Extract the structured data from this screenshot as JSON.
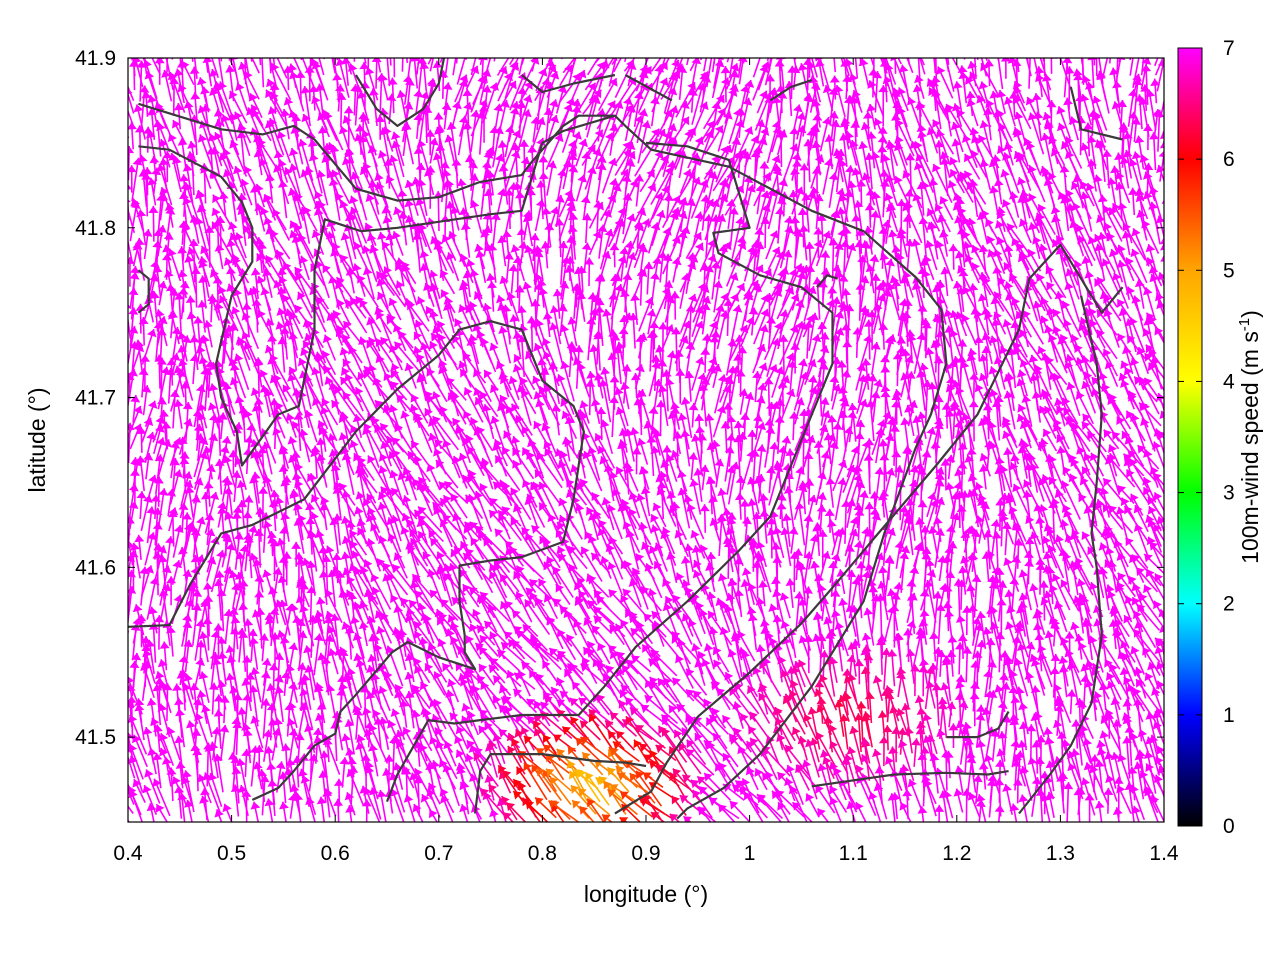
{
  "chart_data": {
    "type": "vector-field",
    "xlabel": "longitude (°)",
    "ylabel": "latitude (°)",
    "xlim": [
      0.4,
      1.4
    ],
    "ylim": [
      41.45,
      41.9
    ],
    "x_ticks": [
      "0.4",
      "0.5",
      "0.6",
      "0.7",
      "0.8",
      "0.9",
      "1",
      "1.1",
      "1.2",
      "1.3",
      "1.4"
    ],
    "y_ticks": [
      "41.5",
      "41.6",
      "41.7",
      "41.8",
      "41.9"
    ],
    "colorbar": {
      "label_main": "100m-wind speed (m s",
      "label_sup": "-1",
      "label_close": ")",
      "range": [
        0,
        7
      ],
      "ticks": [
        "0",
        "1",
        "2",
        "3",
        "4",
        "5",
        "6",
        "7"
      ],
      "palette": [
        "#000000",
        "#0000ff",
        "#00ffff",
        "#00ff00",
        "#ffff00",
        "#ffa500",
        "#ff0000",
        "#ff00ff"
      ]
    },
    "vectors": {
      "arrow_color": "magenta",
      "dominant_speed_ms": 7,
      "low_speed_zones": [
        {
          "lon": 0.86,
          "lat": 41.465,
          "speed_ms": 4.5
        },
        {
          "lon": 1.1,
          "lat": 41.5,
          "speed_ms": 6.2
        }
      ]
    },
    "contour_color": "#3a3a3a",
    "contours": [
      [
        [
          0.41,
          41.873
        ],
        [
          0.49,
          41.858
        ],
        [
          0.53,
          41.855
        ],
        [
          0.56,
          41.86
        ],
        [
          0.58,
          41.852
        ],
        [
          0.62,
          41.823
        ],
        [
          0.66,
          41.816
        ],
        [
          0.7,
          41.818
        ],
        [
          0.74,
          41.827
        ],
        [
          0.78,
          41.831
        ],
        [
          0.79,
          41.839
        ],
        [
          0.82,
          41.86
        ],
        [
          0.835,
          41.866
        ],
        [
          0.87,
          41.866
        ],
        [
          0.88,
          41.86
        ],
        [
          0.905,
          41.846
        ],
        [
          0.98,
          41.836
        ],
        [
          1.06,
          41.81
        ],
        [
          1.11,
          41.798
        ],
        [
          1.16,
          41.771
        ],
        [
          1.185,
          41.752
        ],
        [
          1.19,
          41.72
        ],
        [
          1.175,
          41.69
        ],
        [
          1.16,
          41.67
        ],
        [
          1.13,
          41.62
        ],
        [
          1.11,
          41.58
        ],
        [
          1.06,
          41.53
        ],
        [
          1.01,
          41.49
        ],
        [
          0.975,
          41.47
        ],
        [
          0.94,
          41.458
        ],
        [
          0.93,
          41.452
        ]
      ],
      [
        [
          0.41,
          41.848
        ],
        [
          0.44,
          41.846
        ],
        [
          0.49,
          41.83
        ],
        [
          0.51,
          41.815
        ],
        [
          0.52,
          41.8
        ],
        [
          0.52,
          41.78
        ],
        [
          0.5,
          41.76
        ],
        [
          0.485,
          41.72
        ],
        [
          0.49,
          41.7
        ],
        [
          0.505,
          41.68
        ],
        [
          0.51,
          41.66
        ],
        [
          0.545,
          41.69
        ],
        [
          0.565,
          41.695
        ],
        [
          0.58,
          41.74
        ],
        [
          0.58,
          41.775
        ],
        [
          0.59,
          41.805
        ],
        [
          0.625,
          41.798
        ],
        [
          0.66,
          41.8
        ],
        [
          0.75,
          41.808
        ],
        [
          0.78,
          41.81
        ],
        [
          0.8,
          41.85
        ],
        [
          0.82,
          41.857
        ],
        [
          0.87,
          41.866
        ]
      ],
      [
        [
          0.41,
          41.775
        ],
        [
          0.42,
          41.77
        ],
        [
          0.42,
          41.755
        ],
        [
          0.41,
          41.75
        ]
      ],
      [
        [
          0.62,
          41.89
        ],
        [
          0.64,
          41.87
        ],
        [
          0.66,
          41.86
        ],
        [
          0.685,
          41.87
        ],
        [
          0.7,
          41.885
        ],
        [
          0.705,
          41.9
        ]
      ],
      [
        [
          0.78,
          41.89
        ],
        [
          0.8,
          41.88
        ],
        [
          0.83,
          41.885
        ],
        [
          0.87,
          41.89
        ]
      ],
      [
        [
          0.88,
          41.89
        ],
        [
          0.91,
          41.88
        ],
        [
          0.925,
          41.875
        ]
      ],
      [
        [
          1.02,
          41.875
        ],
        [
          1.04,
          41.883
        ],
        [
          1.06,
          41.887
        ]
      ],
      [
        [
          1.31,
          41.883
        ],
        [
          1.32,
          41.858
        ],
        [
          1.36,
          41.852
        ]
      ],
      [
        [
          0.4,
          41.565
        ],
        [
          0.44,
          41.566
        ],
        [
          0.46,
          41.59
        ],
        [
          0.49,
          41.62
        ],
        [
          0.52,
          41.625
        ],
        [
          0.57,
          41.64
        ],
        [
          0.62,
          41.68
        ],
        [
          0.66,
          41.705
        ],
        [
          0.7,
          41.725
        ],
        [
          0.72,
          41.74
        ],
        [
          0.75,
          41.745
        ],
        [
          0.78,
          41.74
        ],
        [
          0.8,
          41.71
        ],
        [
          0.83,
          41.695
        ],
        [
          0.84,
          41.68
        ],
        [
          0.83,
          41.64
        ],
        [
          0.82,
          41.615
        ],
        [
          0.78,
          41.606
        ],
        [
          0.75,
          41.604
        ],
        [
          0.72,
          41.601
        ],
        [
          0.72,
          41.58
        ],
        [
          0.725,
          41.56
        ],
        [
          0.725,
          41.55
        ],
        [
          0.735,
          41.54
        ],
        [
          0.7,
          41.547
        ],
        [
          0.67,
          41.556
        ],
        [
          0.655,
          41.55
        ],
        [
          0.62,
          41.525
        ],
        [
          0.605,
          41.515
        ],
        [
          0.6,
          41.502
        ],
        [
          0.58,
          41.495
        ],
        [
          0.56,
          41.48
        ],
        [
          0.545,
          41.47
        ],
        [
          0.52,
          41.463
        ]
      ],
      [
        [
          0.65,
          41.462
        ],
        [
          0.66,
          41.478
        ],
        [
          0.69,
          41.51
        ],
        [
          0.715,
          41.508
        ],
        [
          0.74,
          41.51
        ],
        [
          0.78,
          41.513
        ],
        [
          0.835,
          41.513
        ],
        [
          0.86,
          41.53
        ],
        [
          0.89,
          41.553
        ],
        [
          0.94,
          41.58
        ],
        [
          0.99,
          41.61
        ],
        [
          1.02,
          41.63
        ],
        [
          1.06,
          41.69
        ],
        [
          1.08,
          41.72
        ],
        [
          1.08,
          41.75
        ],
        [
          1.05,
          41.765
        ],
        [
          1.01,
          41.772
        ],
        [
          0.97,
          41.785
        ],
        [
          0.965,
          41.797
        ],
        [
          1.0,
          41.8
        ],
        [
          0.98,
          41.84
        ],
        [
          0.94,
          41.848
        ],
        [
          0.9,
          41.85
        ]
      ],
      [
        [
          0.735,
          41.455
        ],
        [
          0.74,
          41.48
        ],
        [
          0.75,
          41.49
        ],
        [
          0.8,
          41.49
        ],
        [
          0.85,
          41.486
        ],
        [
          0.88,
          41.485
        ],
        [
          0.9,
          41.483
        ]
      ],
      [
        [
          0.87,
          41.455
        ],
        [
          0.905,
          41.468
        ],
        [
          0.92,
          41.485
        ],
        [
          0.95,
          41.512
        ],
        [
          1.0,
          41.538
        ],
        [
          1.05,
          41.567
        ],
        [
          1.08,
          41.588
        ],
        [
          1.12,
          41.617
        ],
        [
          1.18,
          41.66
        ],
        [
          1.22,
          41.69
        ],
        [
          1.26,
          41.74
        ],
        [
          1.27,
          41.77
        ],
        [
          1.3,
          41.79
        ],
        [
          1.32,
          41.77
        ],
        [
          1.34,
          41.75
        ],
        [
          1.36,
          41.765
        ]
      ],
      [
        [
          1.06,
          41.471
        ],
        [
          1.14,
          41.478
        ],
        [
          1.19,
          41.479
        ],
        [
          1.23,
          41.478
        ],
        [
          1.25,
          41.48
        ]
      ],
      [
        [
          1.19,
          41.5
        ],
        [
          1.22,
          41.5
        ],
        [
          1.24,
          41.505
        ],
        [
          1.25,
          41.515
        ]
      ],
      [
        [
          1.26,
          41.455
        ],
        [
          1.29,
          41.478
        ],
        [
          1.31,
          41.495
        ],
        [
          1.33,
          41.52
        ],
        [
          1.34,
          41.56
        ],
        [
          1.335,
          41.6
        ],
        [
          1.33,
          41.62
        ],
        [
          1.335,
          41.65
        ],
        [
          1.34,
          41.69
        ],
        [
          1.335,
          41.72
        ],
        [
          1.32,
          41.76
        ]
      ],
      [
        [
          1.065,
          41.765
        ],
        [
          1.075,
          41.772
        ],
        [
          1.085,
          41.77
        ]
      ]
    ]
  }
}
